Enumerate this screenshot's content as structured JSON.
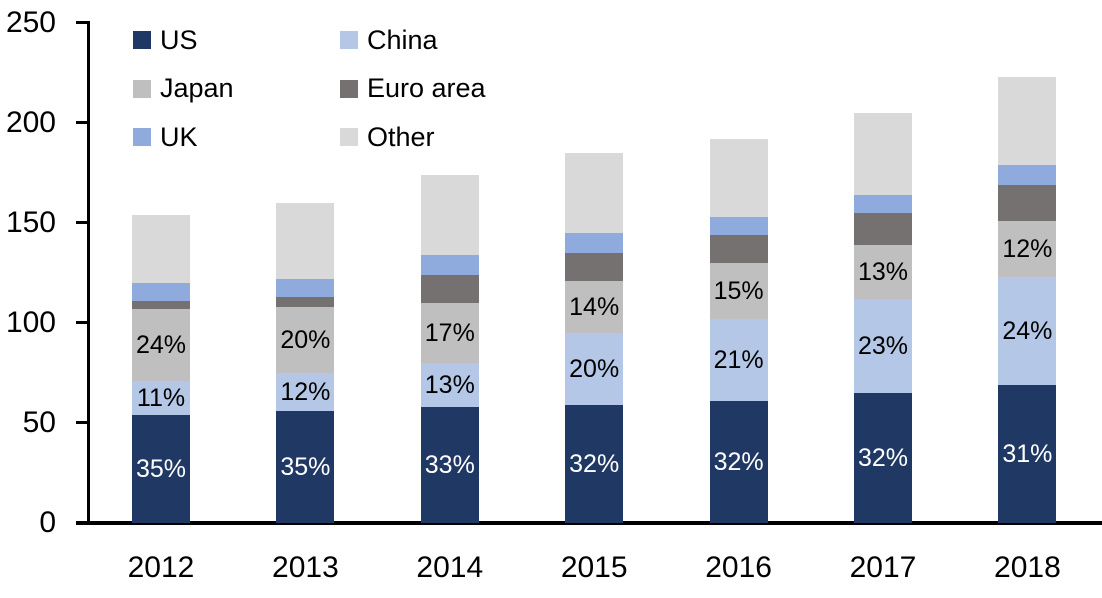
{
  "chart_data": {
    "type": "bar",
    "stacked": true,
    "title": "",
    "categories": [
      "2012",
      "2013",
      "2014",
      "2015",
      "2016",
      "2017",
      "2018"
    ],
    "series": [
      {
        "name": "US",
        "color": "#1F3864",
        "values": [
          54,
          56,
          58,
          59,
          61,
          65,
          69
        ],
        "data_labels": [
          "35%",
          "35%",
          "33%",
          "32%",
          "32%",
          "32%",
          "31%"
        ],
        "data_label_color": "#FFFFFF"
      },
      {
        "name": "China",
        "color": "#B4C7E7",
        "values": [
          17,
          19,
          22,
          36,
          41,
          47,
          54
        ],
        "data_labels": [
          "11%",
          "12%",
          "13%",
          "20%",
          "21%",
          "23%",
          "24%"
        ],
        "data_label_color": "#000000"
      },
      {
        "name": "Japan",
        "color": "#BFBFBF",
        "values": [
          36,
          33,
          30,
          26,
          28,
          27,
          28
        ],
        "data_labels": [
          "24%",
          "20%",
          "17%",
          "14%",
          "15%",
          "13%",
          "12%"
        ],
        "data_label_color": "#000000"
      },
      {
        "name": "Euro area",
        "color": "#767171",
        "values": [
          4,
          5,
          14,
          14,
          14,
          16,
          18
        ],
        "data_labels": null,
        "data_label_color": null
      },
      {
        "name": "UK",
        "color": "#8FAADC",
        "values": [
          9,
          9,
          10,
          10,
          9,
          9,
          10
        ],
        "data_labels": null,
        "data_label_color": null
      },
      {
        "name": "Other",
        "color": "#D9D9D9",
        "values": [
          34,
          38,
          40,
          40,
          39,
          41,
          44
        ],
        "data_labels": null,
        "data_label_color": null
      }
    ],
    "bar_totals": [
      154,
      160,
      174,
      185,
      192,
      205,
      223
    ],
    "y_axis": {
      "min": 0,
      "max": 250,
      "tick_interval": 50,
      "tick_labels": [
        "0",
        "50",
        "100",
        "150",
        "200",
        "250"
      ]
    },
    "x_axis": {
      "labels": [
        "2012",
        "2013",
        "2014",
        "2015",
        "2016",
        "2017",
        "2018"
      ]
    },
    "legend": {
      "position": "top-left",
      "columns": 2,
      "row_major_order": [
        "US",
        "China",
        "Japan",
        "Euro area",
        "UK",
        "Other"
      ]
    },
    "colors": {
      "axis": "#000000",
      "background": "#FFFFFF"
    }
  }
}
